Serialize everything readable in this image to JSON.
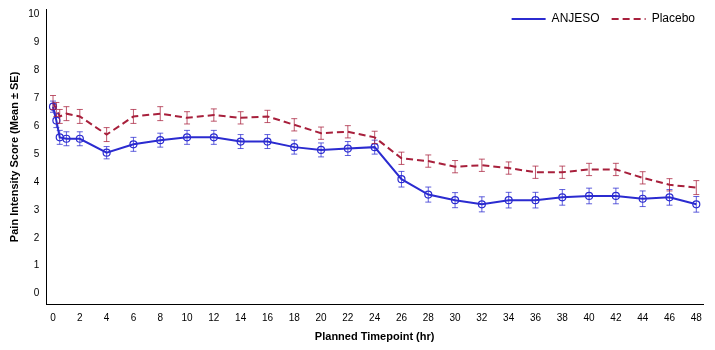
{
  "chart_data": {
    "type": "line",
    "x_label": "Planned Timepoint (hr)",
    "y_label": "Pain Intensity Score (Mean ± SE)",
    "x": [
      0,
      0.25,
      0.5,
      1,
      2,
      4,
      6,
      8,
      10,
      12,
      14,
      16,
      18,
      20,
      22,
      24,
      26,
      28,
      30,
      32,
      34,
      36,
      38,
      40,
      42,
      44,
      46,
      48
    ],
    "series": [
      {
        "name": "ANJESO",
        "color": "#2b2bd0",
        "marker": "circle",
        "line_style": "solid",
        "values": [
          6.7,
          6.2,
          5.6,
          5.55,
          5.55,
          5.05,
          5.35,
          5.5,
          5.6,
          5.6,
          5.45,
          5.45,
          5.25,
          5.15,
          5.2,
          5.25,
          4.1,
          3.55,
          3.35,
          3.2,
          3.35,
          3.35,
          3.45,
          3.5,
          3.5,
          3.4,
          3.45,
          3.2
        ],
        "errors": [
          0.2,
          0.25,
          0.25,
          0.25,
          0.25,
          0.22,
          0.25,
          0.25,
          0.25,
          0.25,
          0.25,
          0.25,
          0.25,
          0.25,
          0.25,
          0.25,
          0.28,
          0.27,
          0.27,
          0.27,
          0.28,
          0.28,
          0.28,
          0.28,
          0.28,
          0.28,
          0.28,
          0.28
        ]
      },
      {
        "name": "Placebo",
        "color": "#a8203c",
        "marker": "none",
        "line_style": "dashed",
        "values": [
          6.85,
          6.6,
          6.35,
          6.45,
          6.35,
          5.7,
          6.35,
          6.45,
          6.3,
          6.4,
          6.3,
          6.35,
          6.05,
          5.75,
          5.8,
          5.6,
          4.85,
          4.75,
          4.55,
          4.6,
          4.5,
          4.35,
          4.35,
          4.45,
          4.45,
          4.15,
          3.9,
          3.8
        ],
        "errors": [
          0.25,
          0.25,
          0.25,
          0.25,
          0.25,
          0.25,
          0.25,
          0.25,
          0.22,
          0.22,
          0.22,
          0.22,
          0.22,
          0.22,
          0.22,
          0.22,
          0.22,
          0.22,
          0.22,
          0.22,
          0.22,
          0.22,
          0.22,
          0.22,
          0.22,
          0.22,
          0.22,
          0.25
        ]
      }
    ],
    "xlim": [
      -0.5,
      48.5
    ],
    "xticks": [
      0,
      2,
      4,
      6,
      8,
      10,
      12,
      14,
      16,
      18,
      20,
      22,
      24,
      26,
      28,
      30,
      32,
      34,
      36,
      38,
      40,
      42,
      44,
      46,
      48
    ],
    "ylim": [
      -0.4,
      10.2
    ],
    "yticks": [
      0,
      1,
      2,
      3,
      4,
      5,
      6,
      7,
      8,
      9,
      10
    ],
    "grid": false,
    "legend": "upper right"
  }
}
